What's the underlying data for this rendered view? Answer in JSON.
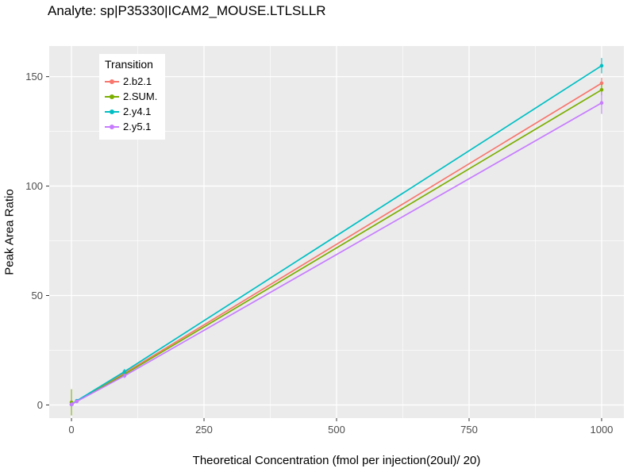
{
  "chart_data": {
    "type": "line",
    "title": "Analyte: sp|P35330|ICAM2_MOUSE.LTLSLLR",
    "xlabel": "Theoretical Concentration (fmol per injection(20ul)/ 20)",
    "ylabel": "Peak Area Ratio",
    "legend_title": "Transition",
    "legend_position": "top-left-inside",
    "grid": true,
    "panel_background": "#EBEBEB",
    "gridline_color": "#FFFFFF",
    "tick_label_color": "#4D4D4D",
    "xlim": [
      -42,
      1042
    ],
    "ylim": [
      -6,
      164
    ],
    "xticks": [
      0,
      250,
      500,
      750,
      1000
    ],
    "xminor": [
      125,
      375,
      625,
      875
    ],
    "yticks": [
      0,
      50,
      100,
      150
    ],
    "yminor": [
      25,
      75,
      125
    ],
    "x": [
      0,
      1,
      10,
      100,
      1000
    ],
    "series": [
      {
        "name": "2.b2.1",
        "color": "#F8766D",
        "values": [
          0.3,
          0.5,
          1.8,
          14.5,
          147
        ],
        "errors": [
          0.5,
          0.3,
          0.4,
          1.2,
          2.5
        ]
      },
      {
        "name": "2.SUM.",
        "color": "#7CAE00",
        "values": [
          1.2,
          0.6,
          1.7,
          14.0,
          144
        ],
        "errors": [
          6.0,
          0.4,
          0.4,
          1.5,
          2.5
        ]
      },
      {
        "name": "2.y4.1",
        "color": "#00BFC4",
        "values": [
          0.2,
          0.4,
          1.9,
          15.2,
          155
        ],
        "errors": [
          0.3,
          0.2,
          0.3,
          1.2,
          3.5
        ]
      },
      {
        "name": "2.y5.1",
        "color": "#C77CFF",
        "values": [
          0.2,
          0.4,
          1.6,
          13.3,
          138
        ],
        "errors": [
          0.3,
          0.2,
          0.3,
          1.0,
          5.0
        ]
      }
    ]
  }
}
